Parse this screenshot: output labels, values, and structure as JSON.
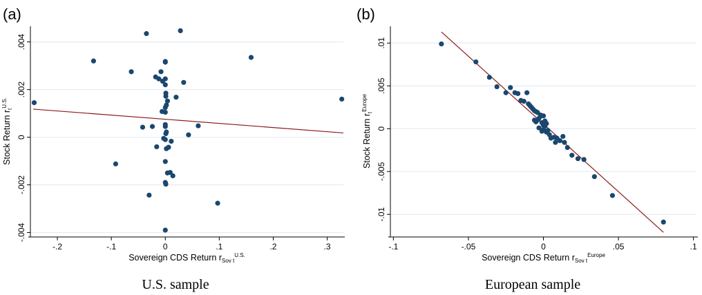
{
  "chart_data": [
    {
      "type": "scatter",
      "panel_label": "(a)",
      "caption": "U.S. sample",
      "xlabel": {
        "main": "Sovereign CDS Return r",
        "sub": "Sov t",
        "sup": "U.S."
      },
      "ylabel": {
        "main": "Stock Return r",
        "sub": "t",
        "sup": "U.S."
      },
      "xlim": [
        -0.25,
        0.33
      ],
      "ylim": [
        -0.0041,
        0.0046
      ],
      "xticks": [
        {
          "v": -0.2,
          "label": "-.2"
        },
        {
          "v": -0.1,
          "label": "-.1"
        },
        {
          "v": 0,
          "label": "0"
        },
        {
          "v": 0.1,
          "label": ".1"
        },
        {
          "v": 0.2,
          "label": ".2"
        },
        {
          "v": 0.3,
          "label": ".3"
        }
      ],
      "yticks": [
        {
          "v": -0.004,
          "label": "-.004"
        },
        {
          "v": -0.002,
          "label": "-.002"
        },
        {
          "v": 0,
          "label": "0"
        },
        {
          "v": 0.002,
          "label": ".002"
        },
        {
          "v": 0.004,
          "label": ".004"
        }
      ],
      "grid": "horizontal",
      "fit_line": {
        "x": [
          -0.245,
          0.33
        ],
        "y": [
          0.00118,
          0.00018
        ]
      },
      "points": [
        [
          -0.243,
          0.00145
        ],
        [
          -0.133,
          0.0032
        ],
        [
          -0.092,
          -0.00112
        ],
        [
          -0.063,
          0.00275
        ],
        [
          -0.042,
          0.00042
        ],
        [
          -0.035,
          0.00435
        ],
        [
          -0.03,
          -0.00243
        ],
        [
          -0.024,
          0.00045
        ],
        [
          -0.016,
          -0.0004
        ],
        [
          -0.018,
          0.00253
        ],
        [
          -0.012,
          0.00245
        ],
        [
          -0.008,
          0.00275
        ],
        [
          -0.005,
          0.00235
        ],
        [
          -0.006,
          0.00108
        ],
        [
          -0.003,
          -5e-05
        ],
        [
          0.0,
          0.00318
        ],
        [
          0.0,
          0.00315
        ],
        [
          0.0,
          0.00245
        ],
        [
          0.0,
          0.0022
        ],
        [
          0.001,
          0.00185
        ],
        [
          0.001,
          0.00172
        ],
        [
          0.002,
          0.00135
        ],
        [
          0.0,
          0.00125
        ],
        [
          0.0,
          0.00105
        ],
        [
          0.0,
          0.00053
        ],
        [
          0.0,
          0.00045
        ],
        [
          0.001,
          0.00015
        ],
        [
          0.0,
          -0.0001
        ],
        [
          0.0,
          -0.00102
        ],
        [
          0.002,
          -0.00048
        ],
        [
          0.006,
          -0.00042
        ],
        [
          0.004,
          0.00152
        ],
        [
          0.004,
          -0.0015
        ],
        [
          0.009,
          -0.00148
        ],
        [
          0.014,
          -0.00162
        ],
        [
          0.011,
          -0.00017
        ],
        [
          0.0,
          -0.0019
        ],
        [
          0.001,
          -0.00197
        ],
        [
          0.0,
          -0.0039
        ],
        [
          0.02,
          0.00168
        ],
        [
          0.028,
          0.00447
        ],
        [
          0.034,
          0.0023
        ],
        [
          0.043,
          0.0001
        ],
        [
          0.061,
          0.00048
        ],
        [
          0.097,
          -0.00277
        ],
        [
          0.159,
          0.00335
        ],
        [
          0.327,
          0.0016
        ],
        [
          0.002,
          0.00022
        ]
      ]
    },
    {
      "type": "scatter",
      "panel_label": "(b)",
      "caption": "European sample",
      "xlabel": {
        "main": "Sovereign CDS Return r",
        "sub": "Sov t",
        "sup": "Europe"
      },
      "ylabel": {
        "main": "Stock Return r",
        "sub": "t",
        "sup": "Europe"
      },
      "xlim": [
        -0.102,
        0.102
      ],
      "ylim": [
        -0.0124,
        0.0118
      ],
      "xticks": [
        {
          "v": -0.1,
          "label": "-.1"
        },
        {
          "v": -0.05,
          "label": "-.05"
        },
        {
          "v": 0,
          "label": "0"
        },
        {
          "v": 0.05,
          "label": ".05"
        },
        {
          "v": 0.1,
          "label": ".1"
        }
      ],
      "yticks": [
        {
          "v": -0.01,
          "label": "-.01"
        },
        {
          "v": -0.005,
          "label": "-.005"
        },
        {
          "v": 0,
          "label": "0"
        },
        {
          "v": 0.005,
          "label": ".005"
        },
        {
          "v": 0.01,
          "label": ".01"
        }
      ],
      "grid": "horizontal",
      "fit_line": {
        "x": [
          -0.068,
          0.08
        ],
        "y": [
          0.0113,
          -0.0121
        ]
      },
      "points": [
        [
          -0.068,
          0.0099
        ],
        [
          -0.045,
          0.0078
        ],
        [
          -0.036,
          0.006
        ],
        [
          -0.031,
          0.0049
        ],
        [
          -0.025,
          0.0042
        ],
        [
          -0.022,
          0.0048
        ],
        [
          -0.019,
          0.0042
        ],
        [
          -0.017,
          0.0041
        ],
        [
          -0.015,
          0.0033
        ],
        [
          -0.013,
          0.0032
        ],
        [
          -0.011,
          0.0042
        ],
        [
          -0.01,
          0.0029
        ],
        [
          -0.009,
          0.0027
        ],
        [
          -0.008,
          0.0025
        ],
        [
          -0.007,
          0.0023
        ],
        [
          -0.006,
          0.0021
        ],
        [
          -0.005,
          0.002
        ],
        [
          -0.004,
          0.0019
        ],
        [
          -0.006,
          0.001
        ],
        [
          -0.005,
          0.0008
        ],
        [
          -0.004,
          0.001
        ],
        [
          -0.003,
          0.0012
        ],
        [
          -0.002,
          0.0016
        ],
        [
          -0.001,
          0.0015
        ],
        [
          0.0,
          0.0015
        ],
        [
          -0.001,
          0.0007
        ],
        [
          0.0,
          0.0004
        ],
        [
          0.001,
          0.0009
        ],
        [
          0.001,
          0.0003
        ],
        [
          0.002,
          0.0006
        ],
        [
          -0.003,
          0.0001
        ],
        [
          -0.001,
          -0.0003
        ],
        [
          0.0,
          -0.0001
        ],
        [
          0.002,
          -0.0004
        ],
        [
          0.003,
          -0.0002
        ],
        [
          0.004,
          -0.0007
        ],
        [
          0.005,
          -0.0011
        ],
        [
          0.007,
          -0.001
        ],
        [
          0.008,
          -0.0016
        ],
        [
          0.009,
          -0.0011
        ],
        [
          0.011,
          -0.0014
        ],
        [
          0.013,
          -0.0009
        ],
        [
          0.014,
          -0.0016
        ],
        [
          0.016,
          -0.0022
        ],
        [
          0.019,
          -0.0031
        ],
        [
          0.023,
          -0.0035
        ],
        [
          0.027,
          -0.0036
        ],
        [
          0.034,
          -0.0056
        ],
        [
          0.046,
          -0.0078
        ],
        [
          0.08,
          -0.0109
        ]
      ]
    }
  ]
}
